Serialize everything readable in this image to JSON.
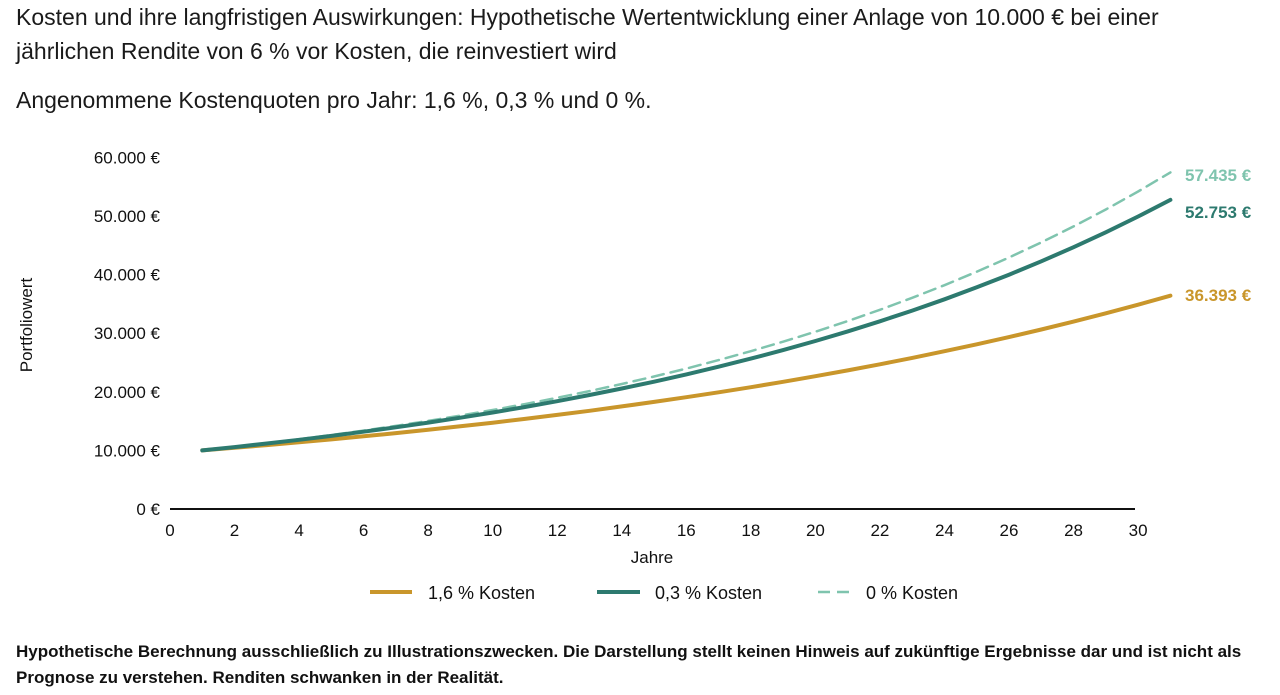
{
  "title": "Kosten und ihre langfristigen Auswirkungen: Hypothetische Wertentwicklung einer Anlage von 10.000 € bei einer jährlichen Rendite von 6 % vor Kosten, die reinvestiert wird",
  "subtitle": "Angenommene Kostenquoten pro Jahr: 1,6 %, 0,3 % und 0 %.",
  "footnote": "Hypothetische Berechnung ausschließlich zu Illustrationszwecken. Die Darstellung stellt keinen Hinweis auf zukünftige Ergebnisse dar und ist nicht als Prognose zu verstehen. Renditen schwanken in der Realität.",
  "chart_data": {
    "type": "line",
    "xlabel": "Jahre",
    "ylabel": "Portfoliowert",
    "xlim": [
      0,
      31
    ],
    "ylim": [
      0,
      60000
    ],
    "x_ticks": [
      "0",
      "2",
      "4",
      "6",
      "8",
      "10",
      "12",
      "14",
      "16",
      "18",
      "20",
      "22",
      "24",
      "26",
      "28",
      "30"
    ],
    "y_ticks": [
      "0 €",
      "10.000 €",
      "20.000 €",
      "30.000 €",
      "40.000 €",
      "50.000 €",
      "60.000 €"
    ],
    "grid": false,
    "legend_position": "bottom",
    "x": [
      1,
      2,
      3,
      4,
      5,
      6,
      7,
      8,
      9,
      10,
      11,
      12,
      13,
      14,
      15,
      16,
      17,
      18,
      19,
      20,
      21,
      22,
      23,
      24,
      25,
      26,
      27,
      28,
      29,
      30,
      31
    ],
    "series": [
      {
        "name": "1,6 % Kosten",
        "color": "#c9962b",
        "dash": false,
        "end_label": "36.393 €",
        "values": [
          10000,
          10440,
          10899,
          11379,
          11880,
          12402,
          12948,
          13518,
          14112,
          14733,
          15382,
          16058,
          16765,
          17503,
          18273,
          19077,
          19916,
          20792,
          21707,
          22662,
          23659,
          24700,
          25787,
          26922,
          28106,
          29343,
          30634,
          31982,
          33389,
          34858,
          36393
        ]
      },
      {
        "name": "0,3 % Kosten",
        "color": "#2d7a6f",
        "dash": false,
        "end_label": "52.753 €",
        "values": [
          10000,
          10570,
          11172,
          11809,
          12482,
          13194,
          13946,
          14741,
          15581,
          16469,
          17408,
          18400,
          19449,
          20557,
          21729,
          22968,
          24277,
          25661,
          27124,
          28670,
          30304,
          32031,
          33857,
          35787,
          37827,
          39983,
          42262,
          44671,
          47217,
          49908,
          52753
        ]
      },
      {
        "name": "0 % Kosten",
        "color": "#7fc4ae",
        "dash": true,
        "end_label": "57.435 €",
        "values": [
          10000,
          10600,
          11236,
          11910,
          12625,
          13382,
          14185,
          15036,
          15938,
          16895,
          17908,
          18983,
          20122,
          21329,
          22609,
          23966,
          25404,
          26928,
          28543,
          30256,
          32071,
          33996,
          36035,
          38197,
          40489,
          42919,
          45494,
          48223,
          51117,
          54184,
          57435
        ]
      }
    ]
  }
}
